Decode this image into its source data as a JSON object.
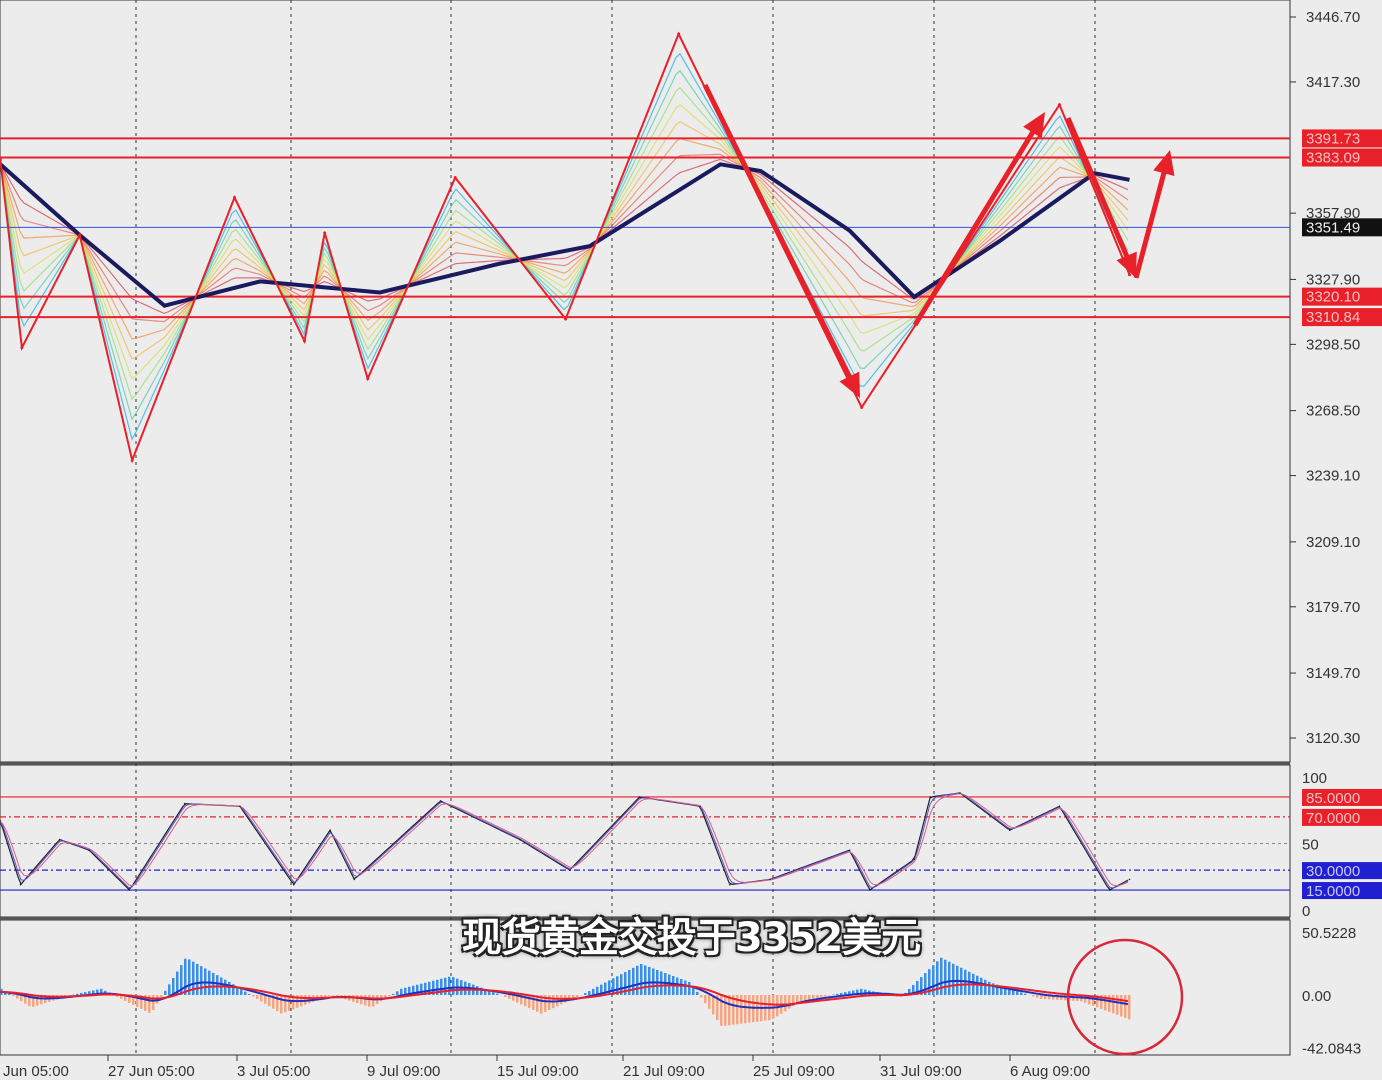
{
  "chart_data": [
    {
      "type": "line",
      "panel": "price",
      "y_axis_ticks": [
        "3446.70",
        "3417.30",
        "3357.90",
        "3327.90",
        "3298.50",
        "3268.50",
        "3239.10",
        "3209.10",
        "3179.70",
        "3149.70",
        "3120.30"
      ],
      "ylim": [
        3120.3,
        3446.7
      ],
      "horizontal_levels": [
        {
          "value": "3391.73",
          "color": "#e8202a"
        },
        {
          "value": "3383.09",
          "color": "#e8202a"
        },
        {
          "value": "3320.10",
          "color": "#e8202a"
        },
        {
          "value": "3310.84",
          "color": "#e8202a"
        }
      ],
      "current_price": {
        "value": "3351.49",
        "color": "#3050e0"
      },
      "zigzag": [
        {
          "t": "23 Jun 21:00",
          "p": 3382
        },
        {
          "t": "24 Jun 13:00",
          "p": 3297
        },
        {
          "t": "26 Jun 08:00",
          "p": 3348
        },
        {
          "t": "27 Jun 23:00",
          "p": 3246
        },
        {
          "t": "3 Jul 03:00",
          "p": 3365
        },
        {
          "t": "7 Jul 07:00",
          "p": 3300
        },
        {
          "t": "7 Jul 22:00",
          "p": 3349
        },
        {
          "t": "9 Jul 06:00",
          "p": 3283
        },
        {
          "t": "11 Jul 23:00",
          "p": 3374
        },
        {
          "t": "17 Jul 09:00",
          "p": 3310
        },
        {
          "t": "22 Jul 21:00",
          "p": 3439
        },
        {
          "t": "30 Jul 13:00",
          "p": 3270
        },
        {
          "t": "7 Aug 16:00",
          "p": 3407
        },
        {
          "t": "11 Aug 20:00",
          "p": 3330
        }
      ],
      "moving_average": [
        {
          "t": "23 Jun 21:00",
          "p": 3380
        },
        {
          "t": "26 Jun 08:00",
          "p": 3348
        },
        {
          "t": "30 Jun 23:00",
          "p": 3316
        },
        {
          "t": "3 Jul 22:00",
          "p": 3327
        },
        {
          "t": "9 Jul 15:00",
          "p": 3322
        },
        {
          "t": "15 Jul 08:00",
          "p": 3335
        },
        {
          "t": "18 Jul 03:00",
          "p": 3343
        },
        {
          "t": "24 Jul 04:00",
          "p": 3380
        },
        {
          "t": "25 Jul 10:00",
          "p": 3377
        },
        {
          "t": "30 Jul 04:00",
          "p": 3350
        },
        {
          "t": "1 Aug 04:00",
          "p": 3320
        },
        {
          "t": "5 Aug 19:00",
          "p": 3345
        },
        {
          "t": "8 Aug 18:00",
          "p": 3376
        },
        {
          "t": "11 Aug 20:00",
          "p": 3373
        }
      ],
      "colors": {
        "zigzag": "#e8202a",
        "moving_average": "#1a1a5e",
        "arrows": "#e8202a"
      }
    },
    {
      "type": "line",
      "panel": "oscillator",
      "ylim": [
        0,
        100
      ],
      "y_axis_ticks": [
        "100",
        "50",
        "0"
      ],
      "levels": [
        {
          "value": "85.0000",
          "color": "#e8202a"
        },
        {
          "value": "70.0000",
          "color": "#e8202a"
        },
        {
          "value": "30.0000",
          "color": "#2020d0"
        },
        {
          "value": "15.0000",
          "color": "#2020d0"
        }
      ],
      "series": [
        {
          "t": "23 Jun 21:00",
          "v": 67
        },
        {
          "t": "24 Jun 12:00",
          "v": 19
        },
        {
          "t": "25 Jun 17:00",
          "v": 53
        },
        {
          "t": "26 Jun 15:00",
          "v": 45
        },
        {
          "t": "27 Jun 21:00",
          "v": 15
        },
        {
          "t": "1 Jul 14:00",
          "v": 80
        },
        {
          "t": "3 Jul 07:00",
          "v": 78
        },
        {
          "t": "4 Jul 23:00",
          "v": 19
        },
        {
          "t": "8 Jul 02:00",
          "v": 60
        },
        {
          "t": "8 Jul 20:00",
          "v": 23
        },
        {
          "t": "11 Jul 12:00",
          "v": 82
        },
        {
          "t": "15 Jul 23:00",
          "v": 53
        },
        {
          "t": "17 Jul 12:00",
          "v": 30
        },
        {
          "t": "21 Jul 16:00",
          "v": 85
        },
        {
          "t": "23 Jul 13:00",
          "v": 78
        },
        {
          "t": "24 Jul 11:00",
          "v": 19
        },
        {
          "t": "25 Jul 17:00",
          "v": 23
        },
        {
          "t": "30 Jul 04:00",
          "v": 45
        },
        {
          "t": "30 Jul 19:00",
          "v": 15
        },
        {
          "t": "1 Aug 04:00",
          "v": 38
        },
        {
          "t": "1 Aug 16:00",
          "v": 85
        },
        {
          "t": "4 Aug 14:00",
          "v": 88
        },
        {
          "t": "6 Aug 03:00",
          "v": 60
        },
        {
          "t": "7 Aug 16:00",
          "v": 78
        },
        {
          "t": "11 Aug 05:00",
          "v": 15
        },
        {
          "t": "11 Aug 20:00",
          "v": 23
        }
      ]
    },
    {
      "type": "bar",
      "panel": "macd",
      "ylim": [
        -42.0843,
        50.5228
      ],
      "y_axis_ticks": [
        "50.5228",
        "0.00",
        "-42.0843"
      ],
      "colors": {
        "positive": "#3b8fe8",
        "negative": "#f4a582",
        "main": "#2030c0",
        "signal": "#e8202a",
        "highlight_circle": "#d8283a"
      },
      "histogram": [
        {
          "t": "23 Jun 21:00",
          "v": 5
        },
        {
          "t": "24 Jun 19:00",
          "v": -10
        },
        {
          "t": "26 Jun 01:00",
          "v": 0
        },
        {
          "t": "26 Jun 23:00",
          "v": 5
        },
        {
          "t": "30 Jun 12:00",
          "v": -15
        },
        {
          "t": "1 Jul 14:00",
          "v": 30
        },
        {
          "t": "2 Jul 23:00",
          "v": 10
        },
        {
          "t": "4 Jul 13:00",
          "v": -15
        },
        {
          "t": "8 Jul 02:00",
          "v": 0
        },
        {
          "t": "9 Jul 08:00",
          "v": -10
        },
        {
          "t": "10 Jul 06:00",
          "v": 5
        },
        {
          "t": "11 Jul 19:00",
          "v": 15
        },
        {
          "t": "15 Jul 08:00",
          "v": 0
        },
        {
          "t": "16 Jul 14:00",
          "v": -15
        },
        {
          "t": "17 Jul 20:00",
          "v": 0
        },
        {
          "t": "21 Jul 16:00",
          "v": 25
        },
        {
          "t": "23 Jul 05:00",
          "v": 10
        },
        {
          "t": "24 Jul 04:00",
          "v": -25
        },
        {
          "t": "25 Jul 17:00",
          "v": -20
        },
        {
          "t": "28 Jul 15:00",
          "v": -5
        },
        {
          "t": "30 Jul 12:00",
          "v": 5
        },
        {
          "t": "31 Jul 17:00",
          "v": -2
        },
        {
          "t": "1 Aug 23:00",
          "v": 30
        },
        {
          "t": "5 Aug 12:00",
          "v": 10
        },
        {
          "t": "7 Aug 01:00",
          "v": -3
        },
        {
          "t": "8 Aug 07:00",
          "v": -5
        },
        {
          "t": "11 Aug 20:00",
          "v": -20
        }
      ]
    }
  ],
  "x_axis_labels": [
    "Jun 05:00",
    "27 Jun 05:00",
    "3 Jul 05:00",
    "9 Jul 09:00",
    "15 Jul 09:00",
    "21 Jul 09:00",
    "25 Jul 09:00",
    "31 Jul 09:00",
    "6 Aug 09:00"
  ],
  "subtitle": "现货黄金交投于3352美元"
}
